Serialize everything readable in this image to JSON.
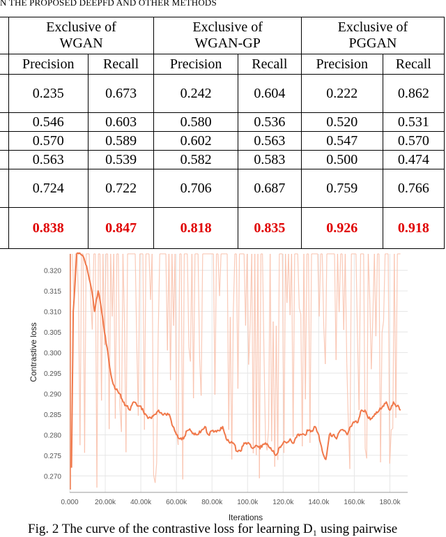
{
  "table_caption": "N THE PROPOSED DEEPFD AND OTHER METHODS",
  "table": {
    "groups": [
      "Exclusive of WGAN",
      "Exclusive of WGAN-GP",
      "Exclusive of PGGAN"
    ],
    "group_lines": [
      [
        "Exclusive of",
        "WGAN"
      ],
      [
        "Exclusive of",
        "WGAN-GP"
      ],
      [
        "Exclusive of",
        "PGGAN"
      ]
    ],
    "subheaders": [
      "Precision",
      "Recall",
      "Precision",
      "Recall",
      "Precision",
      "Recall"
    ],
    "rows": [
      [
        "0.235",
        "0.673",
        "0.242",
        "0.604",
        "0.222",
        "0.862"
      ],
      [
        "0.546",
        "0.603",
        "0.580",
        "0.536",
        "0.520",
        "0.531"
      ],
      [
        "0.570",
        "0.589",
        "0.602",
        "0.563",
        "0.547",
        "0.570"
      ],
      [
        "0.563",
        "0.539",
        "0.582",
        "0.583",
        "0.500",
        "0.474"
      ],
      [
        "0.724",
        "0.722",
        "0.706",
        "0.687",
        "0.759",
        "0.766"
      ],
      [
        "0.838",
        "0.847",
        "0.818",
        "0.835",
        "0.926",
        "0.918"
      ]
    ],
    "highlight_color": "#e00000"
  },
  "chart_data": {
    "type": "line",
    "xlabel": "Iterations",
    "ylabel": "Contrastive loss",
    "x_ticks": [
      "0.000",
      "20.00k",
      "40.00k",
      "60.00k",
      "80.00k",
      "100.0k",
      "120.0k",
      "140.0k",
      "160.0k",
      "180.0k"
    ],
    "y_ticks": [
      "0.270",
      "0.275",
      "0.280",
      "0.285",
      "0.290",
      "0.295",
      "0.300",
      "0.305",
      "0.310",
      "0.315",
      "0.320"
    ],
    "xlim": [
      0,
      190000
    ],
    "ylim": [
      0.266,
      0.324
    ],
    "grid": true,
    "series": [
      {
        "color": "#f0784a",
        "raw_color": "#f9c1ab",
        "x": [
          1000,
          2000,
          4000,
          6000,
          8000,
          10000,
          12000,
          14000,
          16000,
          18000,
          20000,
          22000,
          24000,
          26000,
          28000,
          30000,
          32000,
          34000,
          36000,
          38000,
          40000,
          42000,
          44000,
          46000,
          48000,
          50000,
          52000,
          54000,
          56000,
          58000,
          60000,
          62000,
          64000,
          66000,
          68000,
          70000,
          72000,
          74000,
          76000,
          78000,
          80000,
          82000,
          84000,
          86000,
          88000,
          90000,
          92000,
          94000,
          96000,
          98000,
          100000,
          102000,
          104000,
          106000,
          108000,
          110000,
          112000,
          114000,
          116000,
          118000,
          120000,
          122000,
          124000,
          126000,
          128000,
          130000,
          132000,
          134000,
          136000,
          138000,
          140000,
          142000,
          144000,
          146000,
          148000,
          150000,
          152000,
          154000,
          156000,
          158000,
          160000,
          162000,
          164000,
          166000,
          168000,
          170000,
          172000,
          174000,
          176000,
          178000,
          180000,
          182000,
          184000,
          186000
        ],
        "y": [
          0.272,
          0.31,
          0.324,
          0.324,
          0.323,
          0.32,
          0.316,
          0.31,
          0.315,
          0.31,
          0.304,
          0.298,
          0.293,
          0.291,
          0.29,
          0.288,
          0.287,
          0.286,
          0.288,
          0.287,
          0.287,
          0.285,
          0.284,
          0.284,
          0.285,
          0.286,
          0.285,
          0.285,
          0.285,
          0.282,
          0.28,
          0.279,
          0.279,
          0.281,
          0.281,
          0.28,
          0.28,
          0.281,
          0.282,
          0.28,
          0.281,
          0.281,
          0.281,
          0.282,
          0.279,
          0.278,
          0.278,
          0.276,
          0.276,
          0.278,
          0.278,
          0.277,
          0.277,
          0.277,
          0.277,
          0.278,
          0.277,
          0.276,
          0.275,
          0.277,
          0.278,
          0.278,
          0.279,
          0.278,
          0.28,
          0.28,
          0.28,
          0.281,
          0.281,
          0.282,
          0.28,
          0.276,
          0.274,
          0.28,
          0.28,
          0.279,
          0.281,
          0.281,
          0.28,
          0.282,
          0.283,
          0.283,
          0.286,
          0.286,
          0.284,
          0.284,
          0.285,
          0.286,
          0.287,
          0.288,
          0.286,
          0.288,
          0.287,
          0.286
        ]
      }
    ]
  },
  "figure_caption": "Fig. 2  The curve of the contrastive loss for learning D₁ using  pairwise"
}
